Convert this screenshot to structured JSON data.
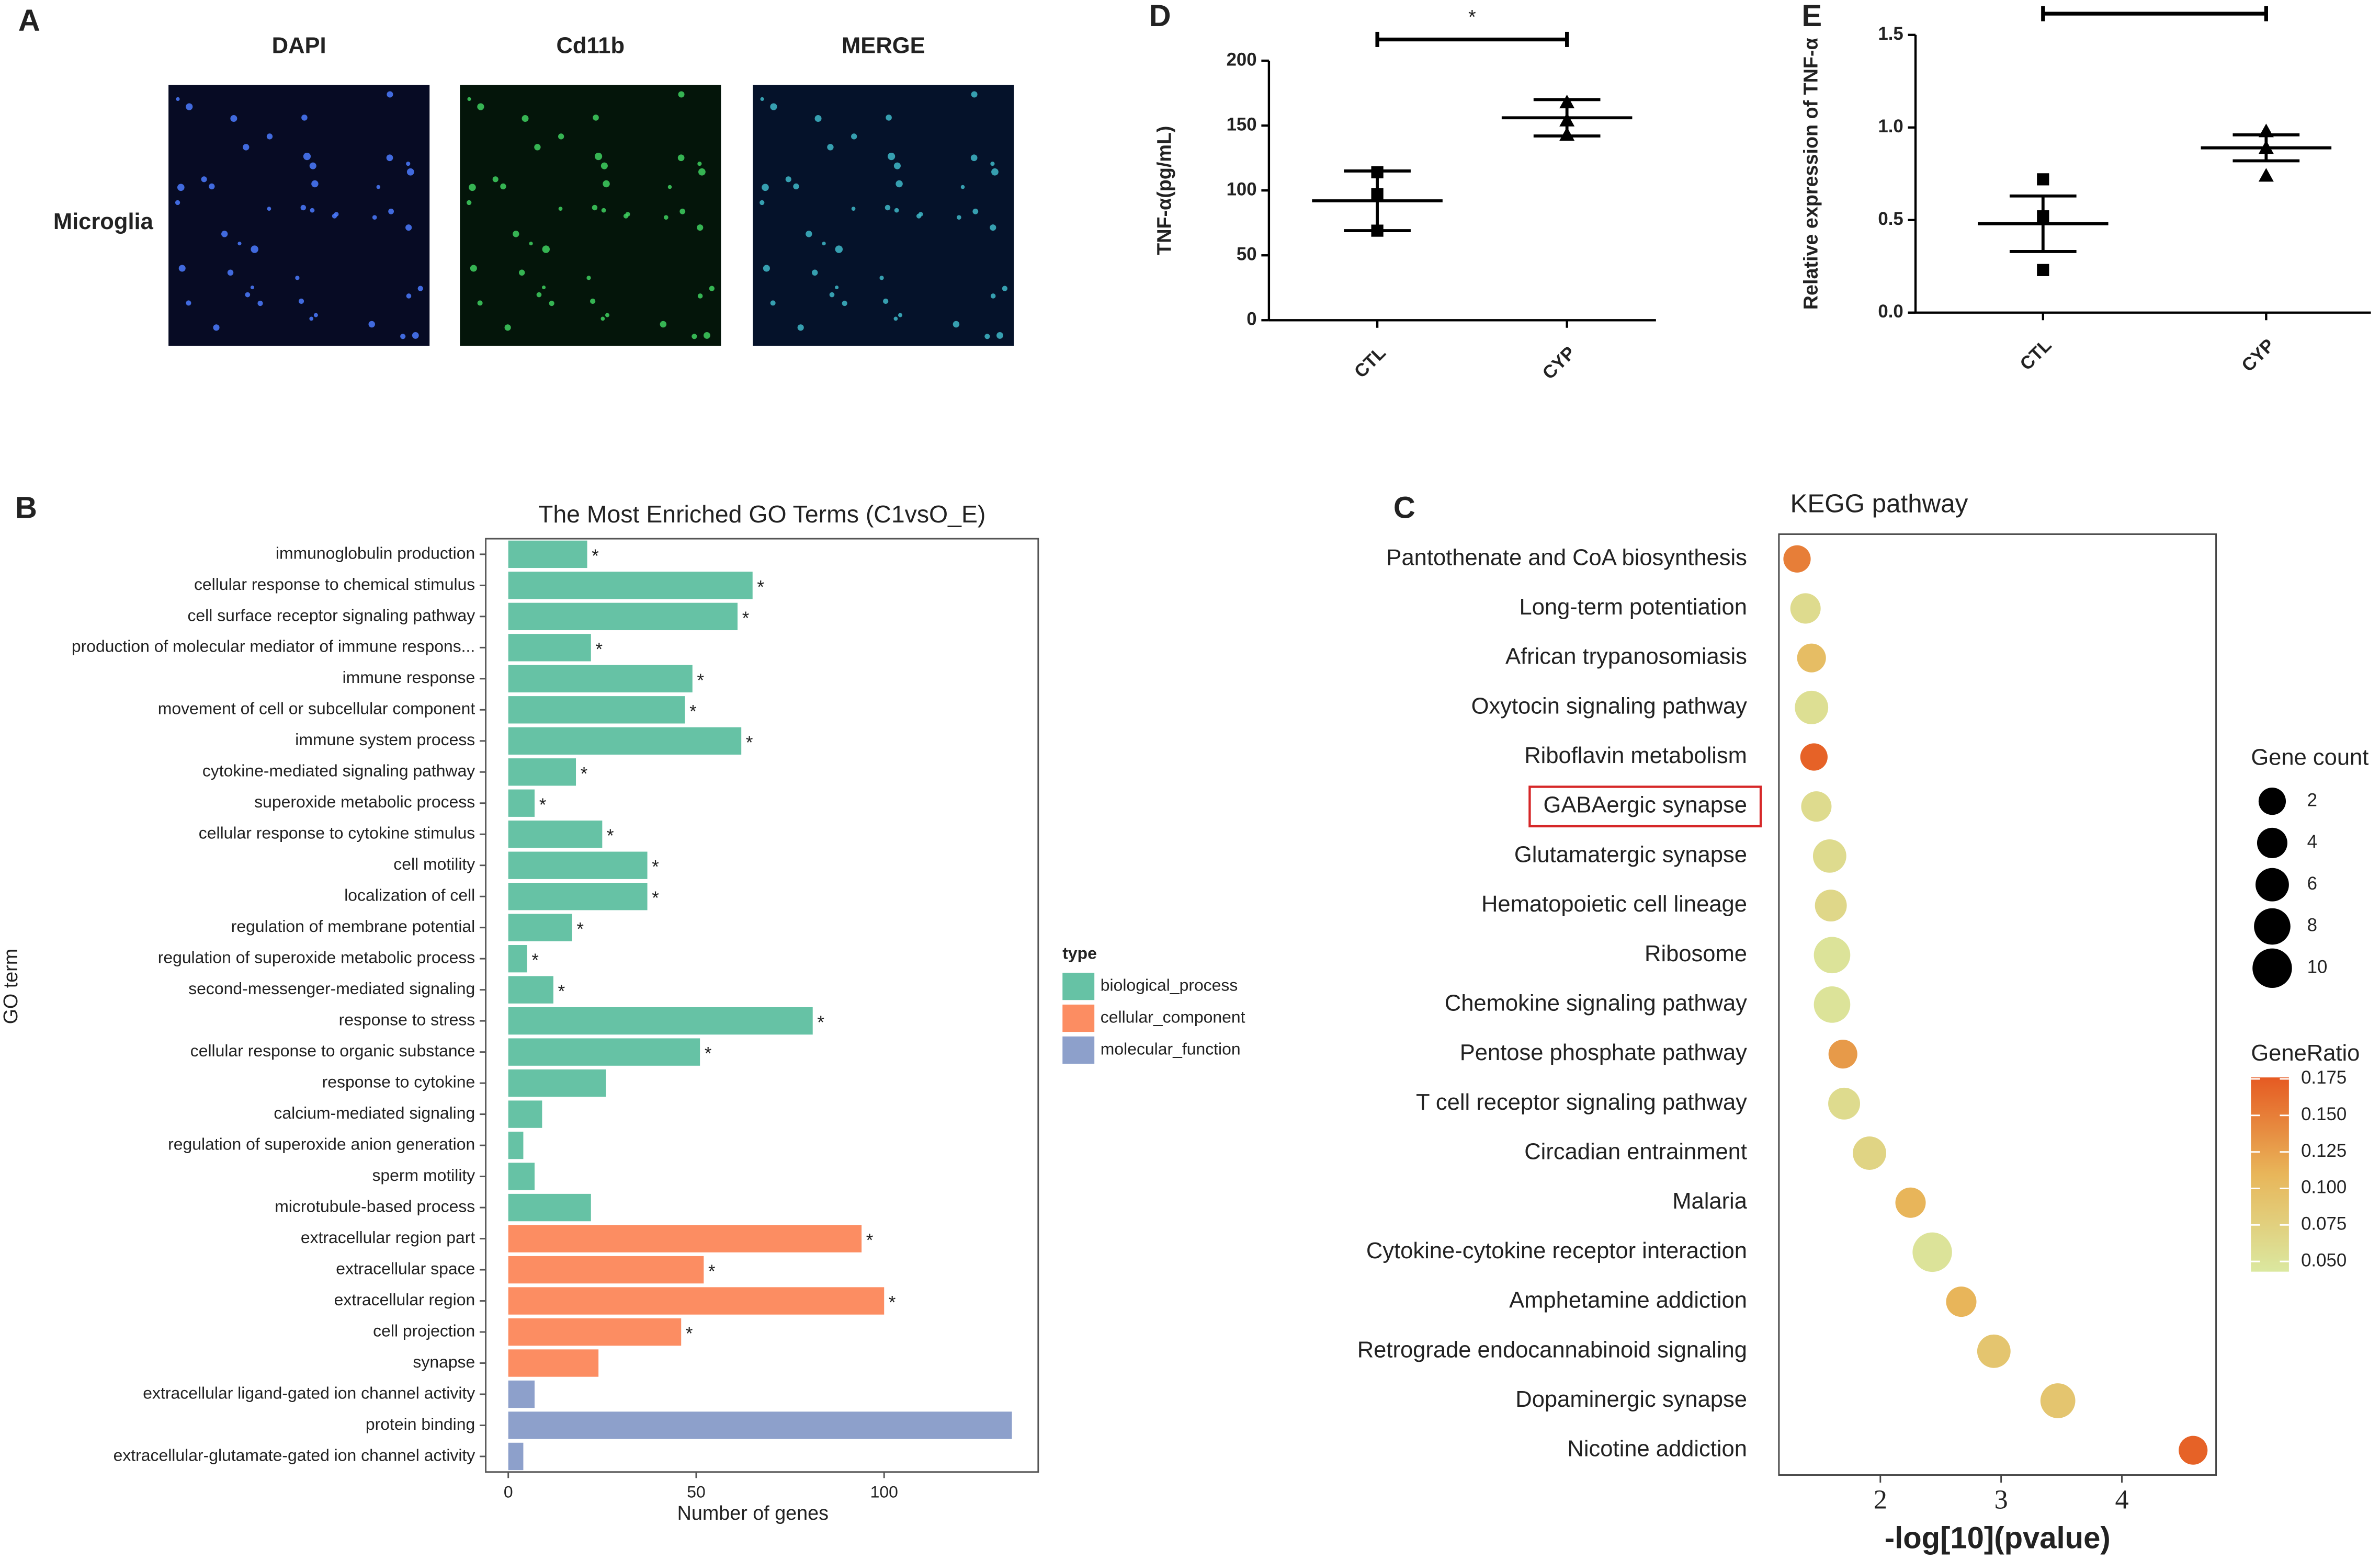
{
  "panel_a": {
    "panel": "A",
    "columns": [
      "DAPI",
      "Cd11b",
      "MERGE"
    ],
    "row": "Microglia"
  },
  "chart_data": [
    {
      "type": "dotplot",
      "panel": "D",
      "ylabel": "TNF-α(pg/mL)",
      "categories": [
        "CTL",
        "CYP"
      ],
      "points": [
        [
          114,
          97,
          69
        ],
        [
          168,
          154,
          143
        ]
      ],
      "markers": [
        "square",
        "triangle"
      ],
      "means": [
        92,
        156
      ],
      "errors": [
        23,
        14
      ],
      "annotation": "*",
      "ylim": [
        0,
        200
      ],
      "yticks": [
        0,
        50,
        100,
        150,
        200
      ]
    },
    {
      "type": "dotplot",
      "panel": "E",
      "ylabel": "Relative expression of TNF-α",
      "categories": [
        "CTL",
        "CYP"
      ],
      "points": [
        [
          0.72,
          0.52,
          0.23
        ],
        [
          0.98,
          0.89,
          0.74
        ]
      ],
      "markers": [
        "square",
        "triangle"
      ],
      "means": [
        0.48,
        0.89
      ],
      "errors": [
        0.15,
        0.07
      ],
      "annotation": "*",
      "ylim": [
        0,
        1.5
      ],
      "yticks": [
        {
          "value": 0,
          "label": "0.0"
        },
        0.5,
        {
          "value": 1,
          "label": "1.0"
        },
        1.5
      ]
    },
    {
      "type": "hbar",
      "panel": "B",
      "title": "The Most Enriched GO Terms (C1vsO_E)",
      "xlabel": "Number of genes",
      "ylabel": "GO term",
      "legend_title": "type",
      "categories": [
        "immunoglobulin production",
        "cellular response to chemical stimulus",
        "cell surface receptor signaling pathway",
        "production of molecular mediator of immune respons...",
        "immune response",
        "movement of cell or subcellular component",
        "immune system process",
        "cytokine-mediated signaling pathway",
        "superoxide metabolic process",
        "cellular response to cytokine stimulus",
        "cell motility",
        "localization of cell",
        "regulation of membrane potential",
        "regulation of superoxide metabolic process",
        "second-messenger-mediated signaling",
        "response to stress",
        "cellular response to organic substance",
        "response to cytokine",
        "calcium-mediated signaling",
        "regulation of superoxide anion generation",
        "sperm motility",
        "microtubule-based process",
        "extracellular region part",
        "extracellular space",
        "extracellular region",
        "cell projection",
        "synapse",
        "extracellular ligand-gated ion channel activity",
        "protein binding",
        "extracellular-glutamate-gated ion channel activity"
      ],
      "series": [
        {
          "name": "biological_process",
          "color": "#66c2a5",
          "values": [
            21,
            65,
            61,
            22,
            49,
            47,
            62,
            18,
            7,
            25,
            37,
            37,
            17,
            5,
            12,
            81,
            51,
            26,
            9,
            4,
            7,
            22,
            null,
            null,
            null,
            null,
            null,
            null,
            null,
            null
          ]
        },
        {
          "name": "cellular_component",
          "color": "#fc8d62",
          "values": [
            null,
            null,
            null,
            null,
            null,
            null,
            null,
            null,
            null,
            null,
            null,
            null,
            null,
            null,
            null,
            null,
            null,
            null,
            null,
            null,
            null,
            null,
            94,
            52,
            100,
            46,
            24,
            null,
            null,
            null
          ]
        },
        {
          "name": "molecular_function",
          "color": "#8da0cb",
          "values": [
            null,
            null,
            null,
            null,
            null,
            null,
            null,
            null,
            null,
            null,
            null,
            null,
            null,
            null,
            null,
            null,
            null,
            null,
            null,
            null,
            null,
            null,
            null,
            null,
            null,
            null,
            null,
            7,
            134,
            4
          ]
        }
      ],
      "annotations": [
        "*",
        "*",
        "*",
        "*",
        "*",
        "*",
        "*",
        "*",
        "*",
        "*",
        "*",
        "*",
        "*",
        "*",
        "*",
        "*",
        "*",
        null,
        null,
        null,
        null,
        null,
        "*",
        "*",
        "*",
        "*",
        null,
        null,
        null,
        null
      ],
      "xlim": [
        -6,
        141
      ],
      "xticks": [
        0,
        50,
        100
      ]
    },
    {
      "type": "bubble",
      "panel": "C",
      "title": "KEGG pathway",
      "xlabel": "-log[10](pvalue)",
      "size_title": "Gene count",
      "color_title": "GeneRatio",
      "categories": [
        "Pantothenate and CoA biosynthesis",
        "Long-term potentiation",
        "African trypanosomiasis",
        "Oxytocin signaling pathway",
        "Riboflavin metabolism",
        "GABAergic synapse",
        "Glutamatergic synapse",
        "Hematopoietic cell lineage",
        "Ribosome",
        "Chemokine signaling pathway",
        "Pentose phosphate pathway",
        "T cell receptor signaling pathway",
        "Circadian entrainment",
        "Malaria",
        "Cytokine-cytokine receptor interaction",
        "Amphetamine addiction",
        "Retrograde endocannabinoid signaling",
        "Dopaminergic synapse",
        "Nicotine addiction"
      ],
      "x": [
        1.31,
        1.38,
        1.43,
        1.43,
        1.45,
        1.47,
        1.58,
        1.59,
        1.6,
        1.6,
        1.69,
        1.7,
        1.91,
        2.25,
        2.43,
        2.67,
        2.94,
        3.47,
        4.59
      ],
      "sizes": [
        2,
        4,
        3,
        6,
        2,
        4,
        6,
        5,
        8,
        8,
        3,
        5,
        6,
        4,
        10,
        4,
        6,
        7,
        3
      ],
      "ratios": [
        0.15,
        0.06,
        0.1,
        0.055,
        0.17,
        0.06,
        0.06,
        0.065,
        0.05,
        0.05,
        0.13,
        0.06,
        0.07,
        0.11,
        0.05,
        0.11,
        0.09,
        0.09,
        0.17
      ],
      "highlight": 5,
      "xlim": [
        1.16,
        4.78
      ],
      "xticks": [
        2,
        3,
        4
      ],
      "size_ticks": [
        2,
        4,
        6,
        8,
        10
      ],
      "colorlim": [
        0.043,
        0.176
      ],
      "colorticks": [
        {
          "value": 0.05,
          "label": "0.050"
        },
        {
          "value": 0.075,
          "label": "0.075"
        },
        {
          "value": 0.1,
          "label": "0.100"
        },
        {
          "value": 0.125,
          "label": "0.125"
        },
        {
          "value": 0.15,
          "label": "0.150"
        },
        {
          "value": 0.175,
          "label": "0.175"
        }
      ],
      "colors": [
        "#dbe8a0",
        "#e8b65a",
        "#e65a22"
      ]
    }
  ]
}
